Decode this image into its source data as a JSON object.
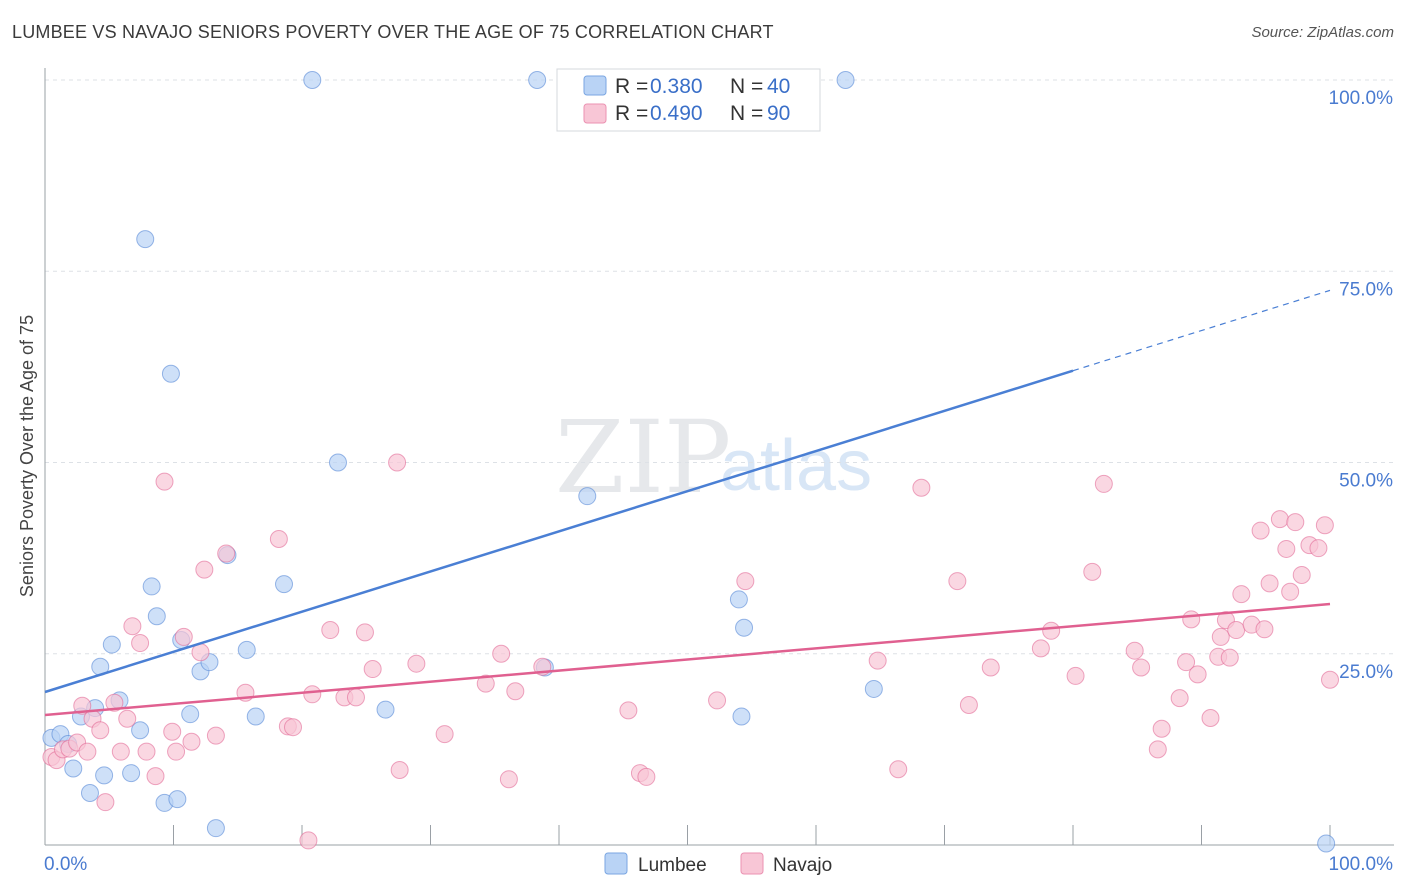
{
  "chart_data": {
    "type": "scatter",
    "title": "LUMBEE VS NAVAJO SENIORS POVERTY OVER THE AGE OF 75 CORRELATION CHART",
    "source": "Source: ZipAtlas.com",
    "xlabel": "",
    "ylabel": "Seniors Poverty Over the Age of 75",
    "xlim": [
      0,
      100
    ],
    "ylim": [
      0,
      100
    ],
    "x_tick_labels": [
      "0.0%",
      "100.0%"
    ],
    "y_tick_labels": [
      "25.0%",
      "50.0%",
      "75.0%",
      "100.0%"
    ],
    "y_tick_values": [
      25,
      50,
      75,
      100
    ],
    "watermark": {
      "left": "ZIP",
      "right": "atlas"
    },
    "legend": [
      {
        "r_label": "R =",
        "r_value": "0.380",
        "n_label": "N =",
        "n_value": "40"
      },
      {
        "r_label": "R =",
        "r_value": "0.490",
        "n_label": "N =",
        "n_value": "90"
      }
    ],
    "series": [
      {
        "name": "Lumbee",
        "color": "#4a7fd4",
        "fill": "#b9d3f5",
        "trend": {
          "x0": 0,
          "y0": 20,
          "x1": 80,
          "y1": 62,
          "dash_to_x": 100,
          "dash_to_y": 72.5
        },
        "points": [
          [
            0.5,
            14
          ],
          [
            1.2,
            14.5
          ],
          [
            1.8,
            13.2
          ],
          [
            2.2,
            10
          ],
          [
            2.8,
            16.8
          ],
          [
            3.5,
            6.8
          ],
          [
            3.9,
            17.9
          ],
          [
            4.3,
            23.3
          ],
          [
            4.6,
            9.1
          ],
          [
            5.2,
            26.2
          ],
          [
            5.8,
            18.9
          ],
          [
            6.7,
            9.4
          ],
          [
            7.4,
            15
          ],
          [
            7.8,
            79.2
          ],
          [
            8.3,
            33.8
          ],
          [
            8.7,
            29.9
          ],
          [
            9.3,
            5.5
          ],
          [
            9.8,
            61.6
          ],
          [
            10.3,
            6
          ],
          [
            10.6,
            26.8
          ],
          [
            11.3,
            17.1
          ],
          [
            12.1,
            22.7
          ],
          [
            12.8,
            23.9
          ],
          [
            13.3,
            2.2
          ],
          [
            14.2,
            37.9
          ],
          [
            15.7,
            25.5
          ],
          [
            16.4,
            16.8
          ],
          [
            18.6,
            34.1
          ],
          [
            20.8,
            100
          ],
          [
            22.8,
            50
          ],
          [
            26.5,
            17.7
          ],
          [
            38.3,
            100
          ],
          [
            38.9,
            23.2
          ],
          [
            42.2,
            45.6
          ],
          [
            54,
            32.1
          ],
          [
            54.4,
            28.4
          ],
          [
            54.2,
            16.8
          ],
          [
            62.3,
            100
          ],
          [
            64.5,
            20.4
          ],
          [
            99.7,
            0.2
          ]
        ]
      },
      {
        "name": "Navajo",
        "color": "#e06090",
        "fill": "#f8c6d6",
        "trend": {
          "x0": 0,
          "y0": 17,
          "x1": 100,
          "y1": 31.5
        },
        "points": [
          [
            0.5,
            11.5
          ],
          [
            0.9,
            11.1
          ],
          [
            1.4,
            12.5
          ],
          [
            1.9,
            12.6
          ],
          [
            2.5,
            13.4
          ],
          [
            2.9,
            18.2
          ],
          [
            3.3,
            12.2
          ],
          [
            3.7,
            16.5
          ],
          [
            4.3,
            15
          ],
          [
            4.7,
            5.6
          ],
          [
            5.4,
            18.6
          ],
          [
            5.9,
            12.2
          ],
          [
            6.4,
            16.5
          ],
          [
            6.8,
            28.6
          ],
          [
            7.4,
            26.4
          ],
          [
            7.9,
            12.2
          ],
          [
            8.6,
            9
          ],
          [
            9.3,
            47.5
          ],
          [
            9.9,
            14.8
          ],
          [
            10.2,
            12.2
          ],
          [
            10.8,
            27.2
          ],
          [
            11.4,
            13.5
          ],
          [
            12.1,
            25.2
          ],
          [
            12.4,
            36
          ],
          [
            13.3,
            14.3
          ],
          [
            14.1,
            38.1
          ],
          [
            15.6,
            19.9
          ],
          [
            18.2,
            40
          ],
          [
            18.9,
            15.5
          ],
          [
            19.3,
            15.4
          ],
          [
            20.5,
            0.6
          ],
          [
            20.8,
            19.7
          ],
          [
            22.2,
            28.1
          ],
          [
            23.3,
            19.3
          ],
          [
            24.2,
            19.3
          ],
          [
            24.9,
            27.8
          ],
          [
            25.5,
            23
          ],
          [
            27.4,
            50
          ],
          [
            27.6,
            9.8
          ],
          [
            28.9,
            23.7
          ],
          [
            31.1,
            14.5
          ],
          [
            34.3,
            21.1
          ],
          [
            35.5,
            25
          ],
          [
            36.1,
            8.6
          ],
          [
            36.6,
            20.1
          ],
          [
            38.7,
            23.3
          ],
          [
            45.4,
            17.6
          ],
          [
            46.3,
            9.4
          ],
          [
            46.8,
            8.9
          ],
          [
            52.3,
            18.9
          ],
          [
            54.5,
            34.5
          ],
          [
            64.8,
            24.1
          ],
          [
            66.4,
            9.9
          ],
          [
            68.2,
            46.7
          ],
          [
            71,
            34.5
          ],
          [
            71.9,
            18.3
          ],
          [
            73.6,
            23.2
          ],
          [
            77.5,
            25.7
          ],
          [
            78.3,
            28
          ],
          [
            80.2,
            22.1
          ],
          [
            81.5,
            35.7
          ],
          [
            82.4,
            47.2
          ],
          [
            84.8,
            25.4
          ],
          [
            85.3,
            23.2
          ],
          [
            86.6,
            12.5
          ],
          [
            86.9,
            15.2
          ],
          [
            88.3,
            19.2
          ],
          [
            88.8,
            23.9
          ],
          [
            89.2,
            29.5
          ],
          [
            89.7,
            22.3
          ],
          [
            90.7,
            16.6
          ],
          [
            91.3,
            24.6
          ],
          [
            91.5,
            27.2
          ],
          [
            91.9,
            29.4
          ],
          [
            92.2,
            24.5
          ],
          [
            92.7,
            28.1
          ],
          [
            93.1,
            32.8
          ],
          [
            93.9,
            28.8
          ],
          [
            94.6,
            41.1
          ],
          [
            94.9,
            28.2
          ],
          [
            95.3,
            34.2
          ],
          [
            96.1,
            42.6
          ],
          [
            96.6,
            38.7
          ],
          [
            96.9,
            33.1
          ],
          [
            97.3,
            42.2
          ],
          [
            97.8,
            35.3
          ],
          [
            98.4,
            39.2
          ],
          [
            99.1,
            38.8
          ],
          [
            99.6,
            41.8
          ],
          [
            100,
            21.6
          ]
        ]
      }
    ]
  }
}
